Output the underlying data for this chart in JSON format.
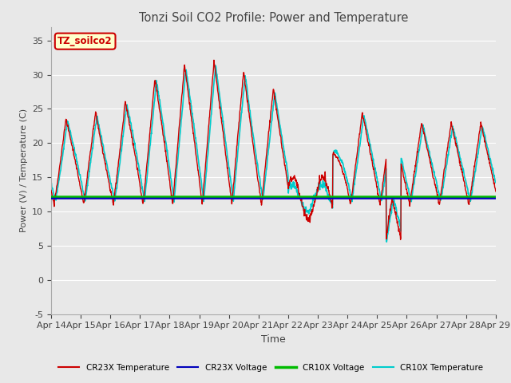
{
  "title": "Tonzi Soil CO2 Profile: Power and Temperature",
  "xlabel": "Time",
  "ylabel": "Power (V) / Temperature (C)",
  "ylim": [
    -5,
    37
  ],
  "yticks": [
    -5,
    0,
    5,
    10,
    15,
    20,
    25,
    30,
    35
  ],
  "xlim": [
    0,
    15
  ],
  "xtick_labels": [
    "Apr 14",
    "Apr 15",
    "Apr 16",
    "Apr 17",
    "Apr 18",
    "Apr 19",
    "Apr 20",
    "Apr 21",
    "Apr 22",
    "Apr 23",
    "Apr 24",
    "Apr 25",
    "Apr 26",
    "Apr 27",
    "Apr 28",
    "Apr 29"
  ],
  "plot_bg": "#e8e8e8",
  "fig_bg": "#e8e8e8",
  "cr23x_temp_color": "#cc0000",
  "cr23x_volt_color": "#0000bb",
  "cr10x_volt_color": "#00bb00",
  "cr10x_temp_color": "#00cccc",
  "cr23x_volt_value": 11.9,
  "cr10x_volt_value": 12.1,
  "annotation_text": "TZ_soilco2",
  "annotation_bg": "#ffffcc",
  "annotation_border": "#cc0000",
  "legend_entries": [
    "CR23X Temperature",
    "CR23X Voltage",
    "CR10X Voltage",
    "CR10X Temperature"
  ],
  "legend_colors": [
    "#cc0000",
    "#0000bb",
    "#00bb00",
    "#00cccc"
  ]
}
